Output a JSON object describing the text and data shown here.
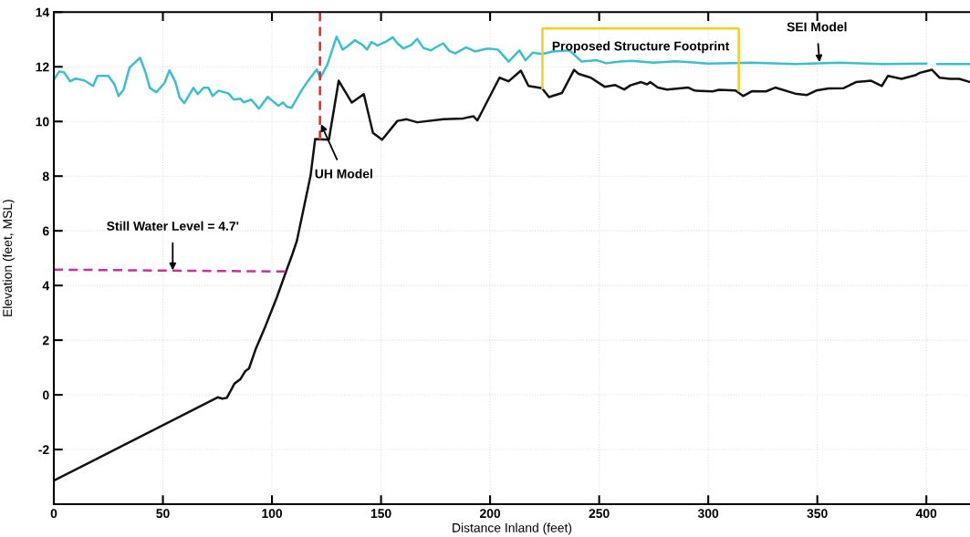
{
  "chart_data": {
    "type": "line",
    "xlabel": "Distance Inland (feet)",
    "ylabel": "Elevation (feet, MSL)",
    "xlim": [
      0,
      420
    ],
    "ylim": [
      -4,
      14
    ],
    "xticks": [
      0,
      50,
      100,
      150,
      200,
      250,
      300,
      350,
      400
    ],
    "yticks": [
      -2,
      0,
      2,
      4,
      6,
      8,
      10,
      12,
      14
    ],
    "grid": true,
    "line_style": "solid",
    "marker": "none",
    "series": [
      {
        "color": "#3bbfcf",
        "x": [
          0,
          2.5,
          4.6,
          7.5,
          10,
          14,
          18,
          20,
          25,
          27.7,
          29.7,
          32,
          34.7,
          39.5,
          42,
          44,
          47,
          50.7,
          53,
          55.6,
          57.7,
          59.8,
          64,
          66,
          68.6,
          70.9,
          72.8,
          75.5,
          80,
          82.5,
          85.6,
          87,
          90.5,
          94,
          98,
          103,
          105,
          107,
          109,
          113.5,
          116.4,
          120.5,
          122.2,
          125.4,
          129.6,
          132.4,
          134.5,
          138,
          141.5,
          143.6,
          145.6,
          148.4,
          152,
          155.4,
          157.5,
          160.3,
          163.8,
          166.6,
          169.4,
          172.9,
          175,
          178.5,
          181.3,
          184,
          188.9,
          193.1,
          198.7,
          203.6,
          208.5,
          213.4,
          216.2,
          219.6,
          223.8,
          228.7,
          236.4,
          242,
          249,
          253.2,
          259.5,
          265,
          275,
          285,
          300,
          320,
          340,
          360,
          380,
          400,
          402,
          405,
          420
        ],
        "values": [
          11.53,
          11.83,
          11.8,
          11.47,
          11.57,
          11.5,
          11.3,
          11.67,
          11.67,
          11.37,
          10.93,
          11.17,
          11.97,
          12.33,
          11.8,
          11.23,
          11.07,
          11.4,
          11.87,
          11.47,
          10.87,
          10.67,
          11.23,
          11.0,
          11.23,
          11.23,
          10.93,
          11.13,
          11.03,
          10.8,
          10.83,
          10.7,
          10.8,
          10.47,
          10.9,
          10.57,
          10.7,
          10.53,
          10.5,
          11.13,
          11.47,
          11.9,
          11.6,
          12.08,
          13.1,
          12.63,
          12.74,
          12.97,
          12.8,
          12.63,
          12.91,
          12.78,
          12.91,
          13.08,
          12.86,
          12.67,
          12.8,
          13.02,
          12.69,
          12.6,
          12.71,
          12.86,
          12.58,
          12.49,
          12.71,
          12.56,
          12.67,
          12.63,
          12.19,
          12.6,
          12.24,
          12.52,
          12.47,
          12.56,
          12.6,
          12.19,
          12.24,
          12.13,
          12.19,
          12.22,
          12.15,
          12.2,
          12.12,
          12.15,
          12.1,
          12.15,
          12.1,
          12.12,
          null,
          12.1,
          12.1
        ]
      },
      {
        "color": "#111111",
        "x": [
          0,
          75.1,
          77.2,
          79.3,
          82.8,
          85.6,
          87.7,
          89.5,
          92.6,
          96.8,
          102.3,
          106.5,
          109.3,
          111.4,
          114.2,
          117.7,
          119.8,
          126.1,
          130.6,
          136.6,
          142.1,
          146.3,
          150.5,
          157.5,
          161.7,
          166.6,
          178.5,
          187.6,
          192.4,
          194.2,
          204.3,
          208.5,
          214.1,
          217.6,
          223.8,
          227,
          232.9,
          238.5,
          240.6,
          246.2,
          252.5,
          257.4,
          261.5,
          264.3,
          269.2,
          272,
          273.4,
          276.9,
          281.1,
          290.9,
          293.7,
          302,
          304.9,
          312.5,
          316,
          320.2,
          326.5,
          330.7,
          339.8,
          345.3,
          349.5,
          355.1,
          362.1,
          367.7,
          374.7,
          379.6,
          382.4,
          388.6,
          394.9,
          397,
          402.6,
          406.1,
          410.9,
          415.1,
          420
        ],
        "values": [
          -3.14,
          -0.09,
          -0.14,
          -0.11,
          0.41,
          0.58,
          0.86,
          0.97,
          1.69,
          2.47,
          3.58,
          4.52,
          5.13,
          5.63,
          6.69,
          8.02,
          9.36,
          9.33,
          11.49,
          10.69,
          11.0,
          9.58,
          9.33,
          10.02,
          10.08,
          9.97,
          10.08,
          10.11,
          10.19,
          10.04,
          11.6,
          11.47,
          11.86,
          11.3,
          11.22,
          10.89,
          11.04,
          11.89,
          11.74,
          11.6,
          11.27,
          11.33,
          11.17,
          11.32,
          11.44,
          11.36,
          11.44,
          11.24,
          11.17,
          11.24,
          11.13,
          11.1,
          11.16,
          11.13,
          10.93,
          11.11,
          11.1,
          11.24,
          11.02,
          10.97,
          11.13,
          11.21,
          11.22,
          11.44,
          11.49,
          11.3,
          11.67,
          11.56,
          11.69,
          11.78,
          11.89,
          11.6,
          11.56,
          11.56,
          11.44
        ]
      },
      {
        "color": "#e8262a",
        "line_style": "dashed",
        "x": [
          122,
          122
        ],
        "values": [
          14,
          9.33
        ]
      },
      {
        "color": "#c8309c",
        "line_style": "dashed",
        "x": [
          0,
          106.5
        ],
        "values": [
          4.58,
          4.51
        ]
      },
      {
        "color": "#f0d020",
        "x": [
          224,
          224,
          314,
          314
        ],
        "values": [
          11.22,
          13.4,
          13.4,
          11.13
        ]
      }
    ],
    "annotations": [
      {
        "text": "Still Water Level = 4.7'",
        "x": 54.5,
        "y": 4.56
      },
      {
        "text": "UH Model",
        "x": 122.5,
        "y": 9.9
      },
      {
        "text": "SEI Model",
        "x": 351,
        "y": 12.17
      },
      {
        "text": "Proposed Structure Footprint",
        "x": 269,
        "y": 13.4
      }
    ]
  }
}
